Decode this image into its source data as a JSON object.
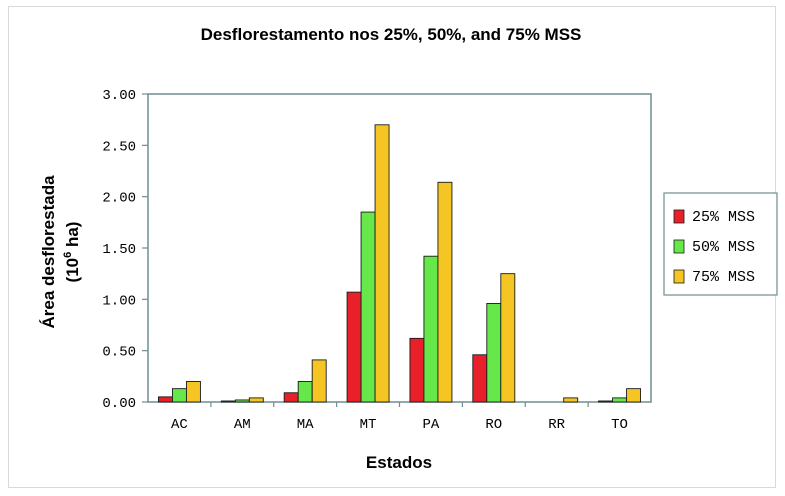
{
  "chart_data": {
    "type": "bar",
    "title": "Desflorestamento nos 25%, 50%, and 75% MSS",
    "xlabel": "Estados",
    "ylabel_line1": "Área desflorestada",
    "ylabel_line2_prefix": "(10",
    "ylabel_line2_sup": "6",
    "ylabel_line2_suffix": " ha)",
    "ylim": [
      0,
      3
    ],
    "yticks": [
      "0.00",
      "0.50",
      "1.00",
      "1.50",
      "2.00",
      "2.50",
      "3.00"
    ],
    "categories": [
      "AC",
      "AM",
      "MA",
      "MT",
      "PA",
      "RO",
      "RR",
      "TO"
    ],
    "grid": false,
    "legend_position": "right",
    "series": [
      {
        "name": "25% MSS",
        "color": "#e8202a",
        "values": [
          0.05,
          0.01,
          0.09,
          1.07,
          0.62,
          0.46,
          0.0,
          0.01
        ]
      },
      {
        "name": "50% MSS",
        "color": "#66e84a",
        "values": [
          0.13,
          0.02,
          0.2,
          1.85,
          1.42,
          0.96,
          0.0,
          0.04
        ]
      },
      {
        "name": "75% MSS",
        "color": "#f5c523",
        "values": [
          0.2,
          0.04,
          0.41,
          2.7,
          2.14,
          1.25,
          0.04,
          0.13
        ]
      }
    ]
  }
}
